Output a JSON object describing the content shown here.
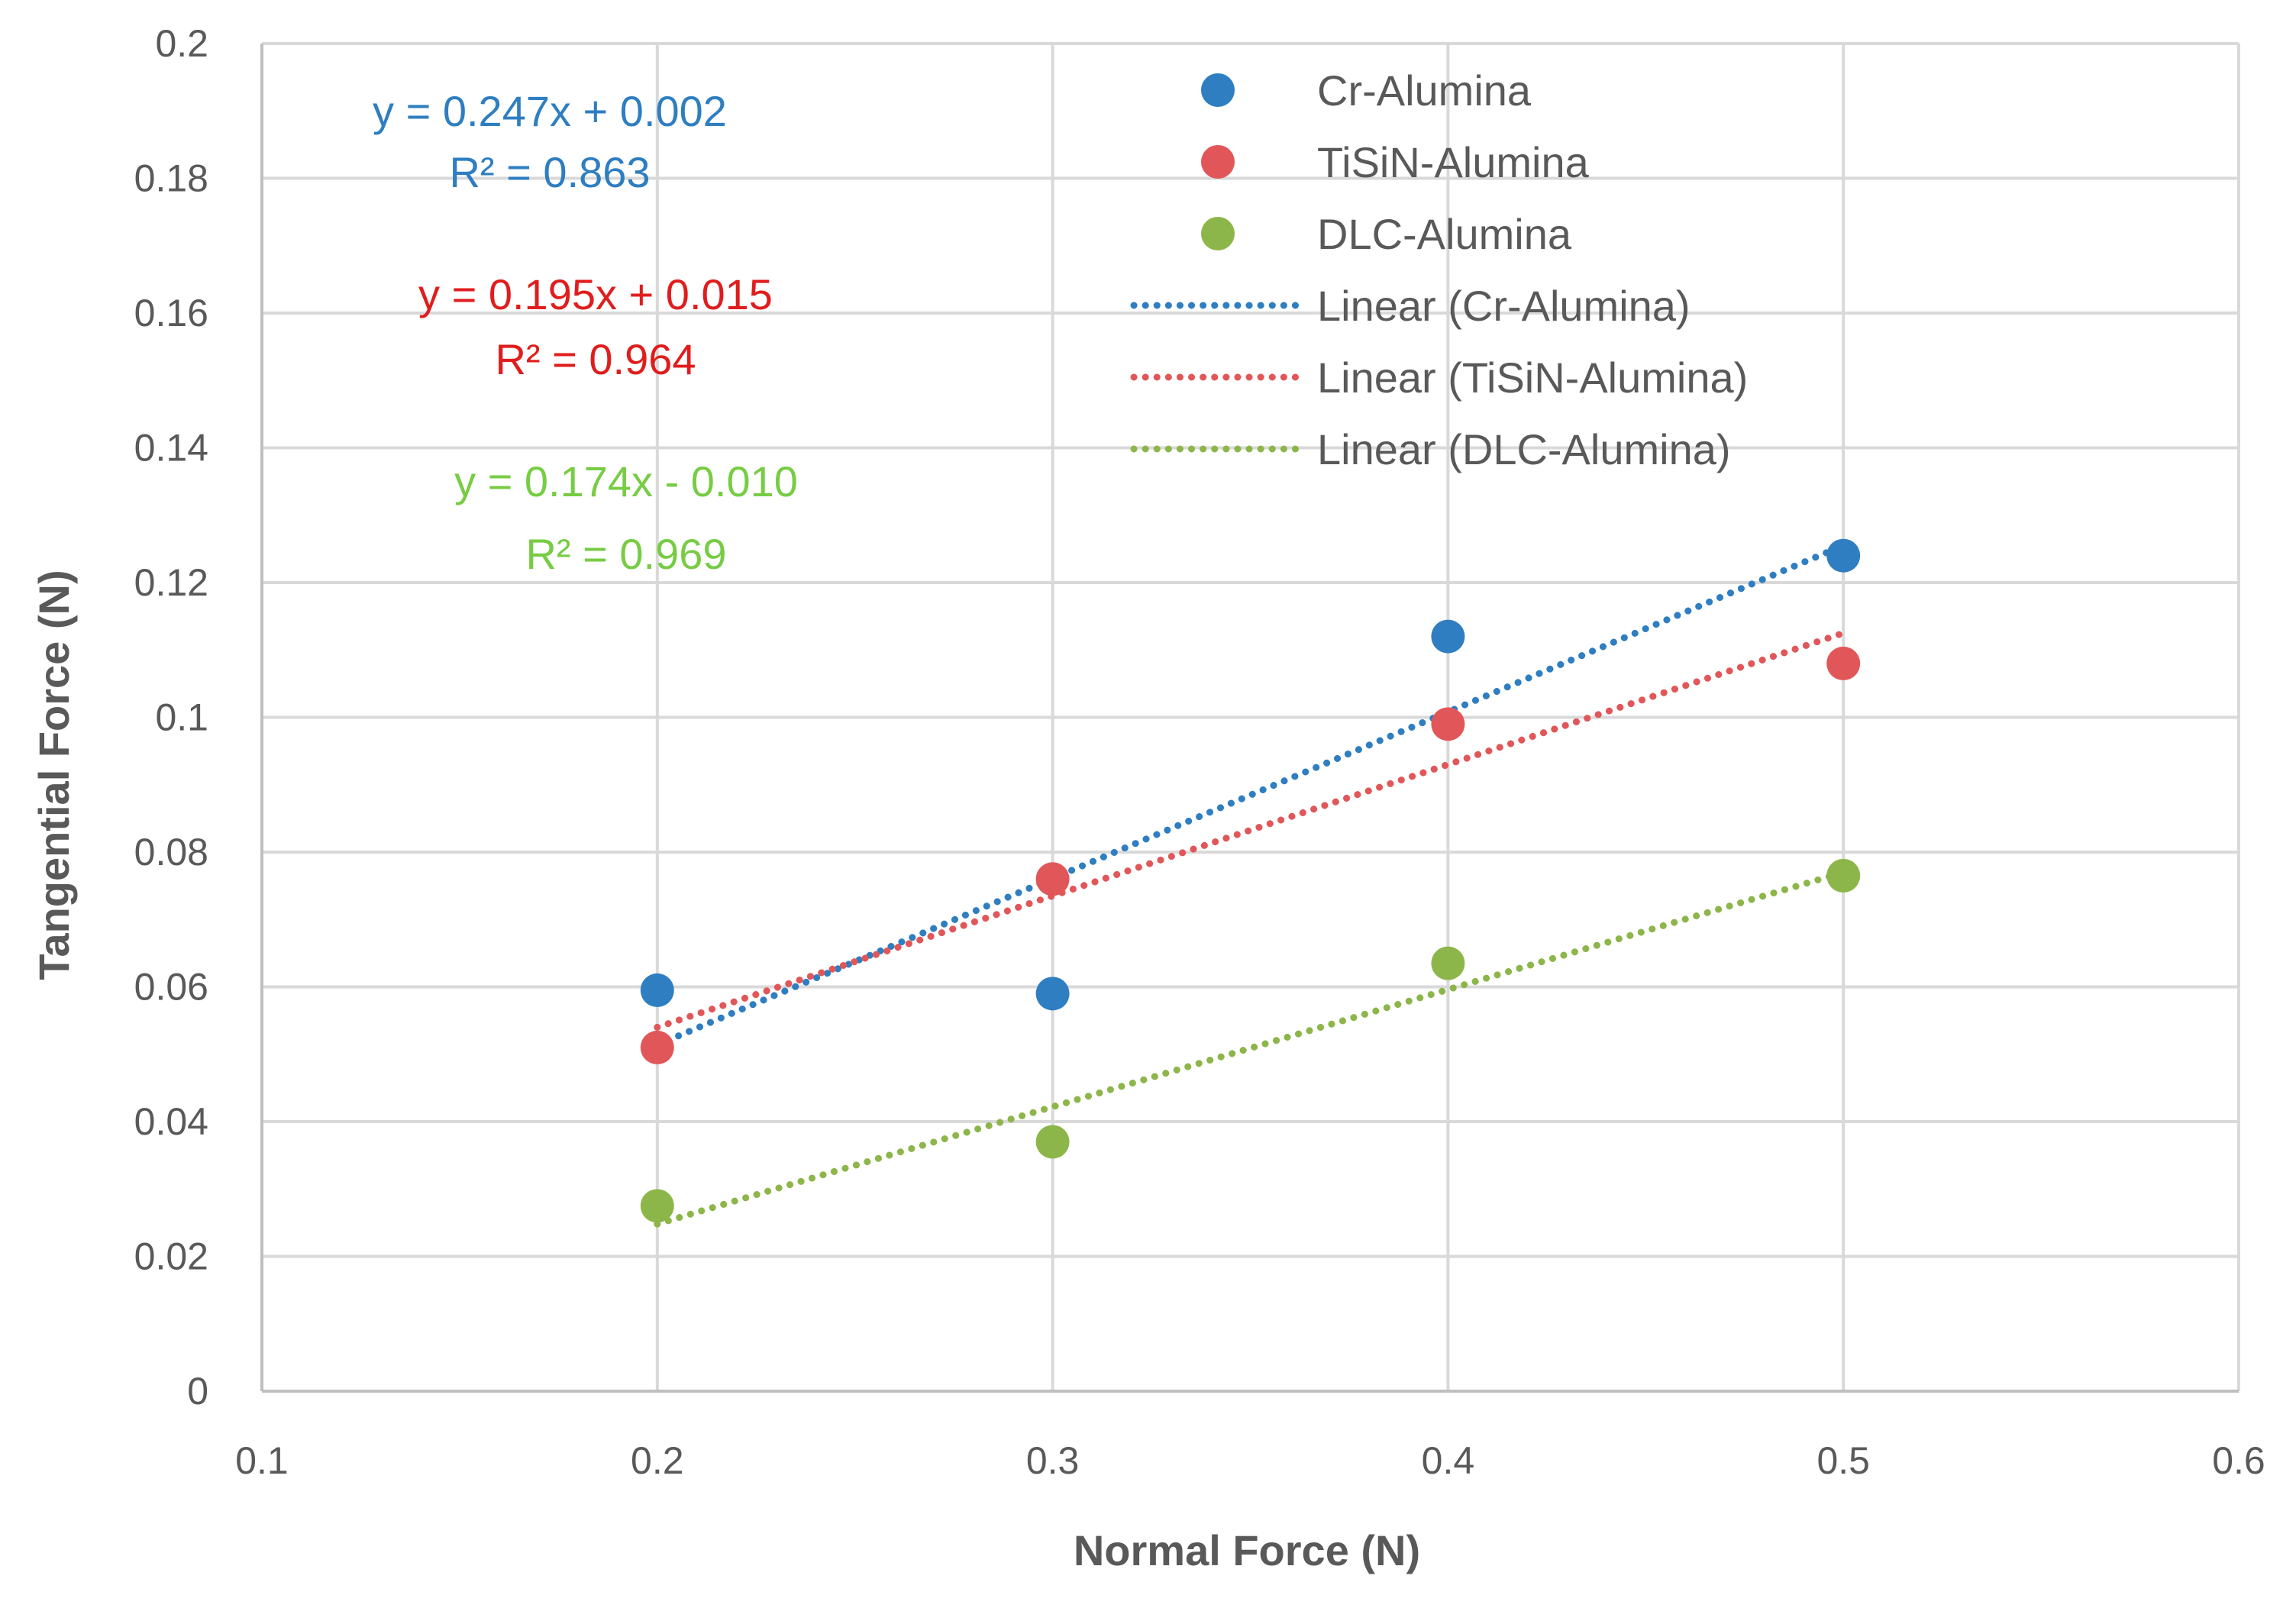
{
  "chart_data": {
    "type": "scatter",
    "title": "",
    "xlabel": "Normal Force (N)",
    "ylabel": "Tangential Force (N)",
    "xlim": [
      0.1,
      0.6
    ],
    "ylim": [
      0,
      0.2
    ],
    "xticks": [
      0.1,
      0.2,
      0.3,
      0.4,
      0.5,
      0.6
    ],
    "xtick_labels": [
      "0.1",
      "0.2",
      "0.3",
      "0.4",
      "0.5",
      "0.6"
    ],
    "yticks": [
      0,
      0.02,
      0.04,
      0.06,
      0.08,
      0.1,
      0.12,
      0.14,
      0.16,
      0.18,
      0.2
    ],
    "ytick_labels": [
      "0",
      "0.02",
      "0.04",
      "0.06",
      "0.08",
      "0.1",
      "0.12",
      "0.14",
      "0.16",
      "0.18",
      "0.2"
    ],
    "grid": true,
    "legend_position": "top-right",
    "series": [
      {
        "name": "Cr-Alumina",
        "color": "#2E7EC1",
        "x": [
          0.2,
          0.3,
          0.4,
          0.5
        ],
        "y": [
          0.0595,
          0.059,
          0.112,
          0.124
        ],
        "trend": {
          "name": "Linear (Cr-Alumina)",
          "slope": 0.247,
          "intercept": 0.002,
          "x_range": [
            0.2,
            0.5
          ]
        },
        "equation": "y = 0.247x + 0.002",
        "r2": "R² = 0.863",
        "equation_color": "#2E7EC1"
      },
      {
        "name": "TiSiN-Alumina",
        "color": "#E15759",
        "x": [
          0.2,
          0.3,
          0.4,
          0.5
        ],
        "y": [
          0.051,
          0.076,
          0.099,
          0.108
        ],
        "trend": {
          "name": "Linear (TiSiN-Alumina)",
          "slope": 0.195,
          "intercept": 0.015,
          "x_range": [
            0.2,
            0.5
          ]
        },
        "equation": "y = 0.195x + 0.015",
        "r2": "R² = 0.964",
        "equation_color": "#E01D1D"
      },
      {
        "name": "DLC-Alumina",
        "color": "#8DB64A",
        "x": [
          0.2,
          0.3,
          0.4,
          0.5
        ],
        "y": [
          0.0275,
          0.037,
          0.0635,
          0.0765
        ],
        "trend": {
          "name": "Linear (DLC-Alumina)",
          "slope": 0.174,
          "intercept": -0.01,
          "x_range": [
            0.2,
            0.5
          ]
        },
        "equation": "y = 0.174x - 0.010",
        "r2": "R² = 0.969",
        "equation_color": "#77CC44"
      }
    ]
  }
}
